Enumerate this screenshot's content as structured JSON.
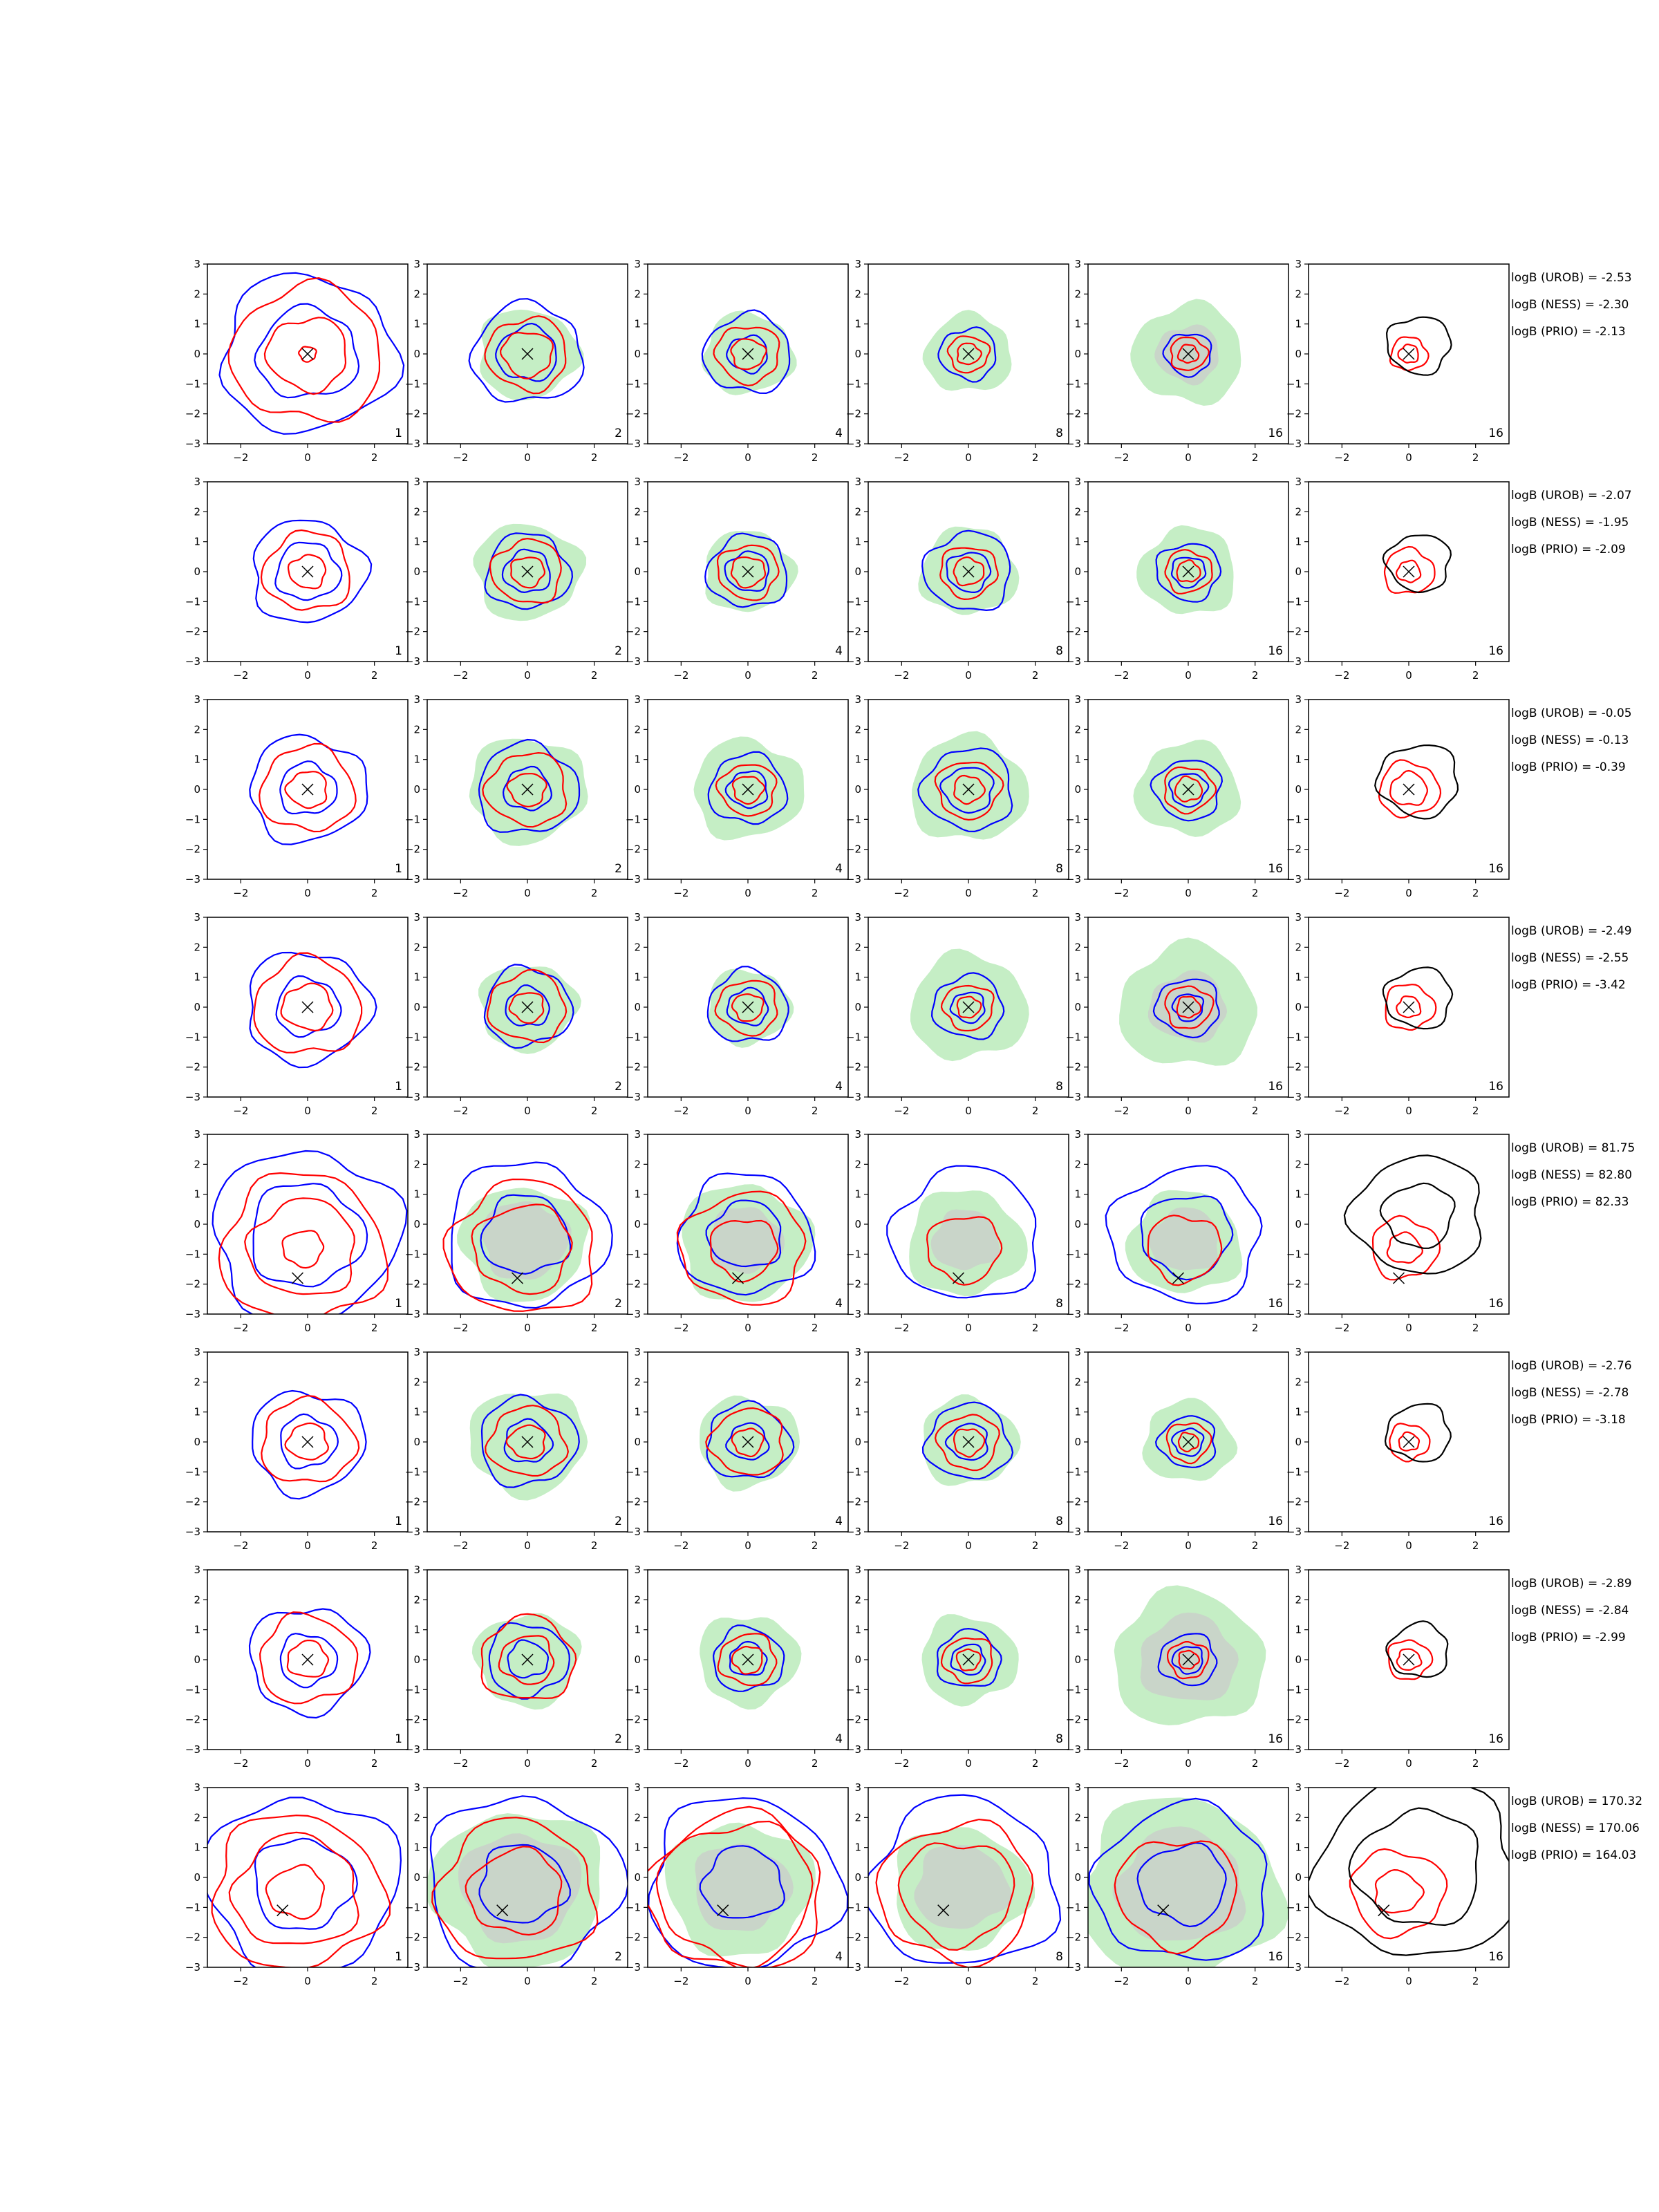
{
  "chart_data": {
    "type": "contour",
    "axes": {
      "xlim": [
        -3,
        3
      ],
      "ylim": [
        -3,
        3
      ],
      "xticks": [
        "−2",
        "0",
        "2"
      ],
      "yticks": [
        "3",
        "2",
        "1",
        "0",
        "−1",
        "−2",
        "−3"
      ]
    },
    "colors": {
      "blue": "#0000ff",
      "red": "#ff0000",
      "black": "#000000",
      "green_fill": "#c5eec5",
      "grey_fill": "#c9d5c9"
    },
    "columns": [
      "1",
      "2",
      "4",
      "8",
      "16",
      "16"
    ],
    "rows": [
      {
        "marker": [
          0,
          0
        ],
        "ann": [
          "logB (UROB) = -2.53",
          "logB (NESS) = -2.30",
          "logB (PRIO) = -2.13"
        ],
        "panels": [
          {
            "blue": [
              2.6,
              1.5
            ],
            "red": [
              2.25,
              1.2,
              0.25
            ],
            "green": 0,
            "grey": 0,
            "black": []
          },
          {
            "blue": [
              1.65,
              0.9
            ],
            "red": [
              1.2,
              0.75
            ],
            "green": 1.5,
            "grey": 0,
            "black": []
          },
          {
            "blue": [
              1.3,
              0.6
            ],
            "red": [
              0.95,
              0.5
            ],
            "green": 1.35,
            "grey": 0,
            "black": []
          },
          {
            "blue": [
              0.85
            ],
            "red": [
              0.6,
              0.35
            ],
            "green": 1.3,
            "grey": 0,
            "black": []
          },
          {
            "blue": [
              0.7
            ],
            "red": [
              0.55,
              0.3
            ],
            "green": 1.65,
            "grey": 0.95,
            "black": []
          },
          {
            "blue": [],
            "red": [
              0.55,
              0.3
            ],
            "green": 0,
            "grey": 0,
            "black": [
              0.95
            ]
          }
        ]
      },
      {
        "marker": [
          0,
          0
        ],
        "ann": [
          "logB (UROB) = -2.07",
          "logB (NESS) = -1.95",
          "logB (PRIO) = -2.09"
        ],
        "panels": [
          {
            "blue": [
              1.7,
              0.95
            ],
            "red": [
              1.3,
              0.55
            ],
            "green": 0,
            "grey": 0,
            "black": []
          },
          {
            "blue": [
              1.25,
              0.7
            ],
            "red": [
              1.05,
              0.5
            ],
            "green": 1.6,
            "grey": 0,
            "black": []
          },
          {
            "blue": [
              1.2,
              0.65
            ],
            "red": [
              0.9,
              0.5
            ],
            "green": 1.35,
            "grey": 0,
            "black": []
          },
          {
            "blue": [
              1.3,
              0.65
            ],
            "red": [
              0.85,
              0.45
            ],
            "green": 1.45,
            "grey": 0,
            "black": []
          },
          {
            "blue": [
              0.95,
              0.5
            ],
            "red": [
              0.7,
              0.35
            ],
            "green": 1.45,
            "grey": 0,
            "black": []
          },
          {
            "blue": [],
            "red": [
              0.75,
              0.35
            ],
            "green": 0,
            "grey": 0,
            "black": [
              0.95
            ]
          }
        ]
      },
      {
        "marker": [
          0,
          0
        ],
        "ann": [
          "logB (UROB) = -0.05",
          "logB (NESS) = -0.13",
          "logB (PRIO) = -0.39"
        ],
        "panels": [
          {
            "blue": [
              1.75,
              0.85
            ],
            "red": [
              1.4,
              0.6
            ],
            "green": 0,
            "grey": 0,
            "black": []
          },
          {
            "blue": [
              1.5,
              0.7
            ],
            "red": [
              1.2,
              0.55
            ],
            "green": 1.75,
            "grey": 0,
            "black": []
          },
          {
            "blue": [
              1.15,
              0.6
            ],
            "red": [
              0.85,
              0.45
            ],
            "green": 1.65,
            "grey": 0,
            "black": []
          },
          {
            "blue": [
              1.35,
              0.75
            ],
            "red": [
              0.95,
              0.45
            ],
            "green": 1.75,
            "grey": 0,
            "black": []
          },
          {
            "blue": [
              1.0,
              0.55
            ],
            "red": [
              0.75,
              0.4
            ],
            "green": 1.55,
            "grey": 0,
            "black": []
          },
          {
            "blue": [],
            "red": [
              0.9,
              0.55
            ],
            "green": 0,
            "grey": 0,
            "black": [
              1.2
            ]
          }
        ]
      },
      {
        "marker": [
          0,
          0
        ],
        "ann": [
          "logB (UROB) = -2.49",
          "logB (NESS) = -2.55",
          "logB (PRIO) = -3.42"
        ],
        "panels": [
          {
            "blue": [
              1.85,
              0.95
            ],
            "red": [
              1.6,
              0.75
            ],
            "green": 0,
            "grey": 0,
            "black": []
          },
          {
            "blue": [
              1.3,
              0.65
            ],
            "red": [
              1.15,
              0.5
            ],
            "green": 1.45,
            "grey": 0,
            "black": []
          },
          {
            "blue": [
              1.2,
              0.6
            ],
            "red": [
              0.9,
              0.45
            ],
            "green": 1.25,
            "grey": 0,
            "black": []
          },
          {
            "blue": [
              1.05,
              0.5
            ],
            "red": [
              0.75,
              0.35
            ],
            "green": 1.75,
            "grey": 0,
            "black": []
          },
          {
            "blue": [
              0.95,
              0.45
            ],
            "red": [
              0.7,
              0.35
            ],
            "green": 2.05,
            "grey": 1.15,
            "black": []
          },
          {
            "blue": [],
            "red": [
              0.75,
              0.35
            ],
            "green": 0,
            "grey": 0,
            "black": [
              1.0
            ]
          }
        ]
      },
      {
        "marker": [
          -0.3,
          -1.8
        ],
        "ann": [
          "logB (UROB) = 81.75",
          "logB (NESS) = 82.80",
          "logB (PRIO) = 82.33"
        ],
        "panels": [
          {
            "blue": [
              2.8,
              1.7
            ],
            "red": [
              2.45,
              1.6,
              0.6
            ],
            "green": 0,
            "grey": 0,
            "black": []
          },
          {
            "blue": [
              2.4,
              1.3
            ],
            "red": [
              2.2,
              1.45
            ],
            "green": 1.9,
            "grey": 1.3,
            "black": []
          },
          {
            "blue": [
              2.0,
              1.1
            ],
            "red": [
              1.85,
              1.0
            ],
            "green": 1.95,
            "grey": 1.1,
            "black": []
          },
          {
            "blue": [
              2.2
            ],
            "red": [
              1.1
            ],
            "green": 1.75,
            "grey": 1.0,
            "black": []
          },
          {
            "blue": [
              2.25,
              1.35
            ],
            "red": [
              1.1
            ],
            "green": 1.7,
            "grey": 1.05,
            "black": []
          },
          {
            "blue": [],
            "red": [
              1.0,
              0.5
            ],
            "green": 0,
            "grey": 0,
            "black": [
              1.95,
              1.05
            ]
          }
        ]
      },
      {
        "marker": [
          0,
          0
        ],
        "ann": [
          "logB (UROB) = -2.76",
          "logB (NESS) = -2.78",
          "logB (PRIO) = -3.18"
        ],
        "panels": [
          {
            "blue": [
              1.7,
              0.85
            ],
            "red": [
              1.4,
              0.6
            ],
            "green": 0,
            "grey": 0,
            "black": []
          },
          {
            "blue": [
              1.45,
              0.7
            ],
            "red": [
              1.15,
              0.55
            ],
            "green": 1.75,
            "grey": 0,
            "black": []
          },
          {
            "blue": [
              1.25,
              0.6
            ],
            "red": [
              1.1,
              0.45
            ],
            "green": 1.5,
            "grey": 0,
            "black": []
          },
          {
            "blue": [
              1.25,
              0.6
            ],
            "red": [
              0.9,
              0.45
            ],
            "green": 1.45,
            "grey": 0,
            "black": []
          },
          {
            "blue": [
              0.85,
              0.45
            ],
            "red": [
              0.65,
              0.3
            ],
            "green": 1.35,
            "grey": 0,
            "black": []
          },
          {
            "blue": [],
            "red": [
              0.6,
              0.3
            ],
            "green": 0,
            "grey": 0,
            "black": [
              0.95
            ]
          }
        ]
      },
      {
        "marker": [
          0,
          0
        ],
        "ann": [
          "logB (UROB) = -2.89",
          "logB (NESS) = -2.84",
          "logB (PRIO) = -2.99"
        ],
        "panels": [
          {
            "blue": [
              1.75,
              0.85
            ],
            "red": [
              1.45,
              0.6
            ],
            "green": 0,
            "grey": 0,
            "black": []
          },
          {
            "blue": [
              1.2,
              0.6
            ],
            "red": [
              1.4,
              0.8
            ],
            "green": 1.55,
            "grey": 0,
            "black": []
          },
          {
            "blue": [
              1.05,
              0.55
            ],
            "red": [
              0.85,
              0.45
            ],
            "green": 1.5,
            "grey": 0,
            "black": []
          },
          {
            "blue": [
              0.95,
              0.5
            ],
            "red": [
              0.75,
              0.35
            ],
            "green": 1.45,
            "grey": 0,
            "black": []
          },
          {
            "blue": [
              0.85,
              0.45
            ],
            "red": [
              0.6,
              0.3
            ],
            "green": 2.25,
            "grey": 1.45,
            "black": []
          },
          {
            "blue": [],
            "red": [
              0.65,
              0.35
            ],
            "green": 0,
            "grey": 0,
            "black": [
              0.9
            ]
          }
        ]
      },
      {
        "marker": [
          -0.75,
          -1.1
        ],
        "ann": [
          "logB (UROB) = 170.32",
          "logB (NESS) = 170.06",
          "logB (PRIO) = 164.03"
        ],
        "panels": [
          {
            "blue": [
              2.9,
              1.5
            ],
            "red": [
              2.55,
              1.85,
              0.85
            ],
            "green": 0,
            "grey": 0,
            "black": []
          },
          {
            "blue": [
              2.9,
              1.3
            ],
            "red": [
              2.35,
              1.4
            ],
            "green": 2.6,
            "grey": 1.8,
            "black": []
          },
          {
            "blue": [
              2.85,
              1.2
            ],
            "red": [
              2.6,
              2.3
            ],
            "green": 2.2,
            "grey": 1.45,
            "black": []
          },
          {
            "blue": [
              2.8
            ],
            "red": [
              2.3,
              1.7
            ],
            "green": 2.05,
            "grey": 1.4,
            "black": []
          },
          {
            "blue": [
              2.6,
              1.3
            ],
            "red": [
              1.8
            ],
            "green": 3.0,
            "grey": 1.9,
            "black": []
          },
          {
            "blue": [],
            "red": [
              1.4,
              0.7
            ],
            "green": 0,
            "grey": 0,
            "black": [
              3.0,
              1.9
            ]
          }
        ]
      }
    ]
  }
}
